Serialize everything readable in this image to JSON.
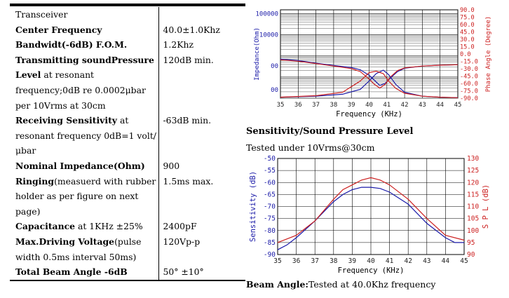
{
  "specs": [
    {
      "parts": [
        {
          "text": "Transceiver",
          "bold": false
        }
      ],
      "value": ""
    },
    {
      "parts": [
        {
          "text": "Center Frequency",
          "bold": true
        }
      ],
      "value": "40.0±1.0Khz"
    },
    {
      "parts": [
        {
          "text": "Bandwidt(-6dB)   F.O.M.",
          "bold": true
        }
      ],
      "value": "1.2Khz"
    },
    {
      "parts": [
        {
          "text": "Transmitting soundPressure Level",
          "bold": true
        },
        {
          "text": " at resonant frequency;0dB re 0.0002μbar per 10Vrms at 30cm",
          "bold": false
        }
      ],
      "value": "120dB min."
    },
    {
      "parts": [
        {
          "text": "Receiving Sensitivity",
          "bold": true
        },
        {
          "text": " at resonant frequency 0dB=1 volt/μbar",
          "bold": false
        }
      ],
      "value": "-63dB min."
    },
    {
      "parts": [
        {
          "text": "Nominal Impedance(Ohm)",
          "bold": true
        }
      ],
      "value": "900"
    },
    {
      "parts": [
        {
          "text": "Ringing",
          "bold": true
        },
        {
          "text": "(measuerd with rubber holder as per figure on next page)",
          "bold": false
        }
      ],
      "value": "1.5ms max."
    },
    {
      "parts": [
        {
          "text": "Capacitance",
          "bold": true
        },
        {
          "text": " at 1KHz  ±25%",
          "bold": false
        }
      ],
      "value": "2400pF"
    },
    {
      "parts": [
        {
          "text": "Max.Driving Voltage",
          "bold": true
        },
        {
          "text": "(pulse width 0.5ms interval 50ms)",
          "bold": false
        }
      ],
      "value": "120Vp-p"
    },
    {
      "parts": [
        {
          "text": "Total Beam Angle  -6dB",
          "bold": true
        }
      ],
      "value": "50° ±10°"
    }
  ],
  "captions": {
    "spl_title": "Sensitivity/Sound Pressure Level",
    "spl_condition": "Tested under 10Vrms@30cm",
    "beam_label": "Beam Angle:",
    "beam_text": "Tested at 40.0Khz frequency"
  },
  "chart_data": [
    {
      "type": "line",
      "xlabel": "Frequency (KHz)",
      "ylabel": "Impedance(Ohm)",
      "ylabel_right": "Phase Angle (Degree)",
      "x_ticks": [
        35,
        36,
        37,
        38,
        39,
        40,
        41,
        42,
        43,
        44,
        45
      ],
      "y_left_ticks": [
        "100000",
        "10000",
        "00",
        "00"
      ],
      "y_right_ticks": [
        "90.0",
        "75.0",
        "60.0",
        "45.0",
        "30.0",
        "15.0",
        "0.0",
        "-15.0",
        "-30.0",
        "-45.0",
        "-60.0",
        "-75.0",
        "-90.0"
      ],
      "xlim": [
        35,
        45
      ],
      "ylim_right": [
        -90,
        90
      ],
      "series": [
        {
          "axis": "left",
          "color": "#1a1aa8",
          "x": [
            35,
            36,
            37,
            38,
            39,
            39.5,
            40,
            40.3,
            40.6,
            40.9,
            41.2,
            41.6,
            42,
            43,
            44,
            45
          ],
          "y": [
            700,
            600,
            450,
            350,
            280,
            220,
            120,
            70,
            40,
            50,
            90,
            180,
            260,
            330,
            360,
            380
          ]
        },
        {
          "axis": "left",
          "color": "#cc2020",
          "x": [
            35,
            36,
            37,
            38,
            39,
            39.5,
            40,
            40.3,
            40.6,
            40.9,
            41.2,
            41.6,
            42,
            43,
            44,
            45
          ],
          "y": [
            650,
            560,
            430,
            330,
            250,
            180,
            80,
            45,
            30,
            45,
            100,
            200,
            270,
            330,
            360,
            380
          ]
        },
        {
          "axis": "right",
          "color": "#1a1aa8",
          "x": [
            35,
            37,
            38.5,
            39.5,
            40,
            40.4,
            40.8,
            41.1,
            41.5,
            42,
            43,
            44,
            45
          ],
          "y": [
            -88,
            -86,
            -82,
            -72,
            -55,
            -40,
            -33,
            -42,
            -62,
            -78,
            -86,
            -88,
            -89
          ]
        },
        {
          "axis": "right",
          "color": "#cc2020",
          "x": [
            35,
            37,
            38.5,
            39.5,
            40,
            40.4,
            40.8,
            41.1,
            41.5,
            42,
            43,
            44,
            45
          ],
          "y": [
            -88,
            -85,
            -78,
            -55,
            -38,
            -35,
            -40,
            -55,
            -70,
            -80,
            -86,
            -88,
            -89
          ]
        }
      ]
    },
    {
      "type": "line",
      "xlabel": "Frequency (KHz)",
      "ylabel": "Sensitivity (dB)",
      "ylabel_right": "S P L (dB)",
      "x_ticks": [
        35,
        36,
        37,
        38,
        39,
        40,
        41,
        42,
        43,
        44,
        45
      ],
      "xlim": [
        35,
        45
      ],
      "ylim": [
        -90,
        -50
      ],
      "ylim_right": [
        90,
        130
      ],
      "y_left_ticks": [
        -50,
        -55,
        -60,
        -65,
        -70,
        -75,
        -80,
        -85,
        -90
      ],
      "y_right_ticks": [
        130,
        125,
        120,
        115,
        110,
        105,
        100,
        95,
        90
      ],
      "series": [
        {
          "axis": "left",
          "color": "#1a1aa8",
          "x": [
            35,
            35.5,
            36,
            37,
            38,
            38.5,
            39,
            39.5,
            40,
            40.5,
            41,
            42,
            43,
            44,
            44.5,
            45
          ],
          "y": [
            -88,
            -86,
            -83,
            -76,
            -68,
            -65,
            -63,
            -62,
            -62,
            -62.5,
            -64,
            -69,
            -77,
            -83,
            -85,
            -85
          ]
        },
        {
          "axis": "right",
          "color": "#cc2020",
          "x": [
            35,
            36,
            37,
            38,
            38.5,
            39,
            39.5,
            40,
            40.5,
            41,
            42,
            43,
            44,
            45
          ],
          "y": [
            95,
            98,
            104,
            113,
            117,
            119,
            121,
            122,
            121,
            119,
            113,
            105,
            98,
            96
          ]
        }
      ]
    }
  ]
}
